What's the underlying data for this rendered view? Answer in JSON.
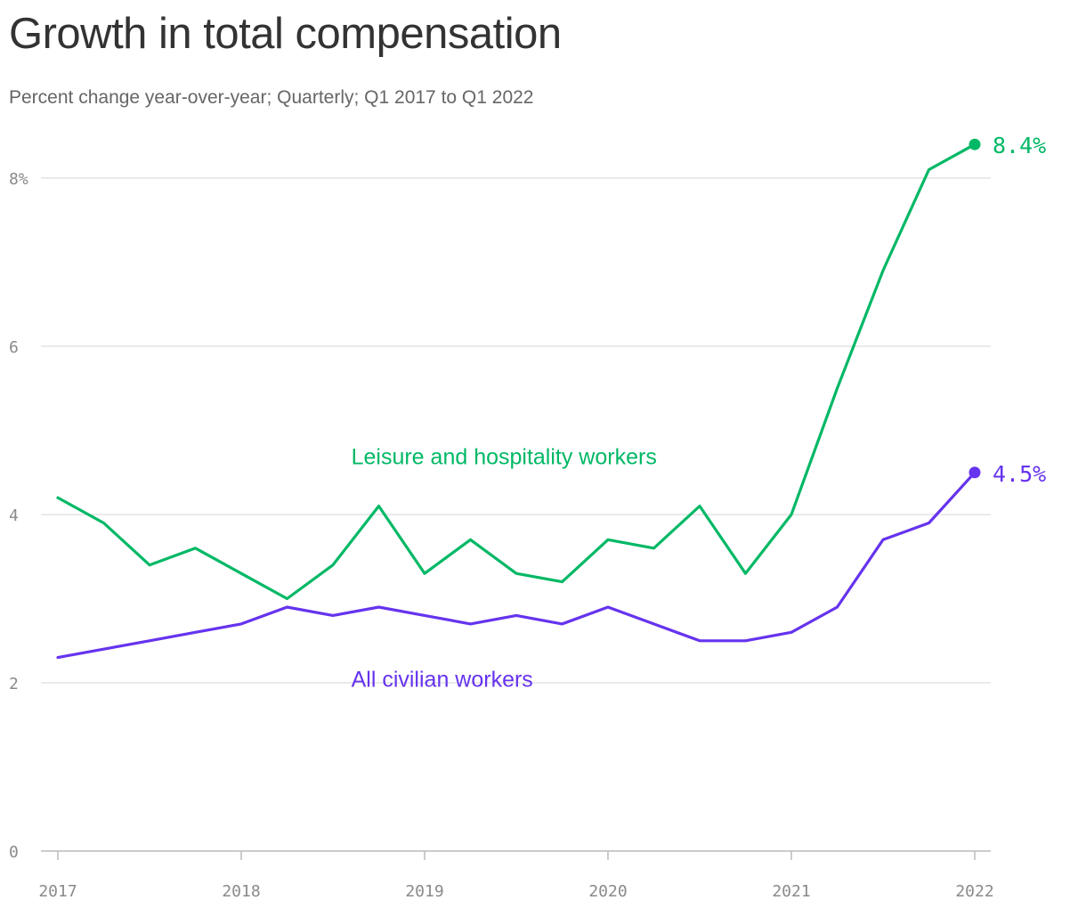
{
  "title": "Growth in total compensation",
  "subtitle": "Percent change year-over-year; Quarterly; Q1 2017 to Q1 2022",
  "chart_data": {
    "type": "line",
    "x": [
      2017.0,
      2017.25,
      2017.5,
      2017.75,
      2018.0,
      2018.25,
      2018.5,
      2018.75,
      2019.0,
      2019.25,
      2019.5,
      2019.75,
      2020.0,
      2020.25,
      2020.5,
      2020.75,
      2021.0,
      2021.25,
      2021.5,
      2021.75,
      2022.0
    ],
    "xlim": [
      2017,
      2022
    ],
    "ylim": [
      0,
      8
    ],
    "grid": true,
    "x_ticks": [
      {
        "value": 2017,
        "label": "2017"
      },
      {
        "value": 2018,
        "label": "2018"
      },
      {
        "value": 2019,
        "label": "2019"
      },
      {
        "value": 2020,
        "label": "2020"
      },
      {
        "value": 2021,
        "label": "2021"
      },
      {
        "value": 2022,
        "label": "2022"
      }
    ],
    "y_ticks": [
      {
        "value": 0,
        "label": "0"
      },
      {
        "value": 2,
        "label": "2"
      },
      {
        "value": 4,
        "label": "4"
      },
      {
        "value": 6,
        "label": "6"
      },
      {
        "value": 8,
        "label": "8%"
      }
    ],
    "series": [
      {
        "name": "Leisure and hospitality workers",
        "color": "#00b865",
        "values": [
          4.2,
          3.9,
          3.4,
          3.6,
          3.3,
          3.0,
          3.4,
          4.1,
          3.3,
          3.7,
          3.3,
          3.2,
          3.7,
          3.6,
          4.1,
          3.3,
          4.0,
          5.5,
          6.9,
          8.1,
          8.4
        ],
        "end_label": "8.4%"
      },
      {
        "name": "All civilian workers",
        "color": "#6633ee",
        "values": [
          2.3,
          2.4,
          2.5,
          2.6,
          2.7,
          2.9,
          2.8,
          2.9,
          2.8,
          2.7,
          2.8,
          2.7,
          2.9,
          2.7,
          2.5,
          2.5,
          2.6,
          2.9,
          3.7,
          3.9,
          4.5
        ],
        "end_label": "4.5%"
      }
    ]
  }
}
